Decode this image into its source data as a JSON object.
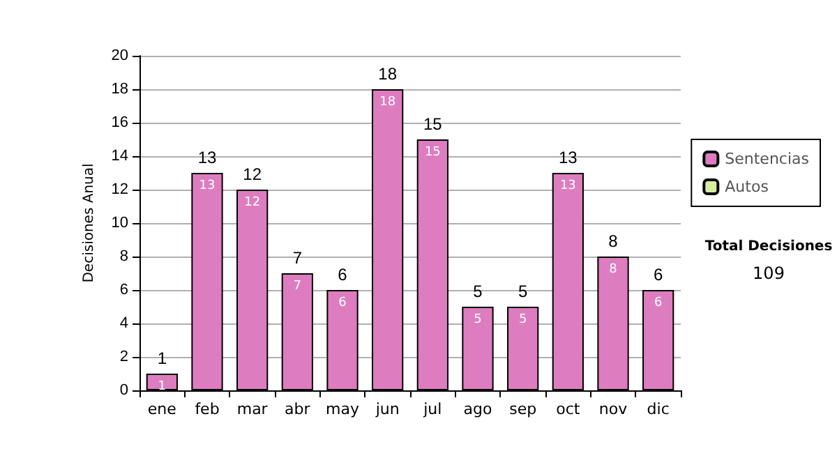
{
  "chart_data": {
    "type": "bar",
    "stacked": true,
    "ylabel": "Decisiones Anual",
    "categories": [
      "ene",
      "feb",
      "mar",
      "abr",
      "may",
      "jun",
      "jul",
      "ago",
      "sep",
      "oct",
      "nov",
      "dic"
    ],
    "series": [
      {
        "name": "Sentencias",
        "color": "#dd7dbf",
        "values": [
          1,
          13,
          12,
          7,
          6,
          18,
          15,
          5,
          5,
          13,
          8,
          6
        ],
        "value_labels": [
          "1",
          "13",
          "12",
          "7",
          "6",
          "18",
          "15",
          "5",
          "5",
          "13",
          "8",
          "6"
        ]
      },
      {
        "name": "Autos",
        "color": "#d8eca0",
        "values": [
          0,
          0,
          0,
          0,
          0,
          0,
          0,
          0,
          0,
          0,
          0,
          0
        ]
      }
    ],
    "totals": [
      "1",
      "13",
      "12",
      "7",
      "6",
      "18",
      "15",
      "5",
      "5",
      "13",
      "8",
      "6"
    ],
    "ylim": [
      0,
      20
    ],
    "yticks": [
      0,
      2,
      4,
      6,
      8,
      10,
      12,
      14,
      16,
      18,
      20
    ],
    "grid": "y",
    "legend": "right",
    "annotations": [
      "Total Decisiones",
      "109"
    ]
  }
}
